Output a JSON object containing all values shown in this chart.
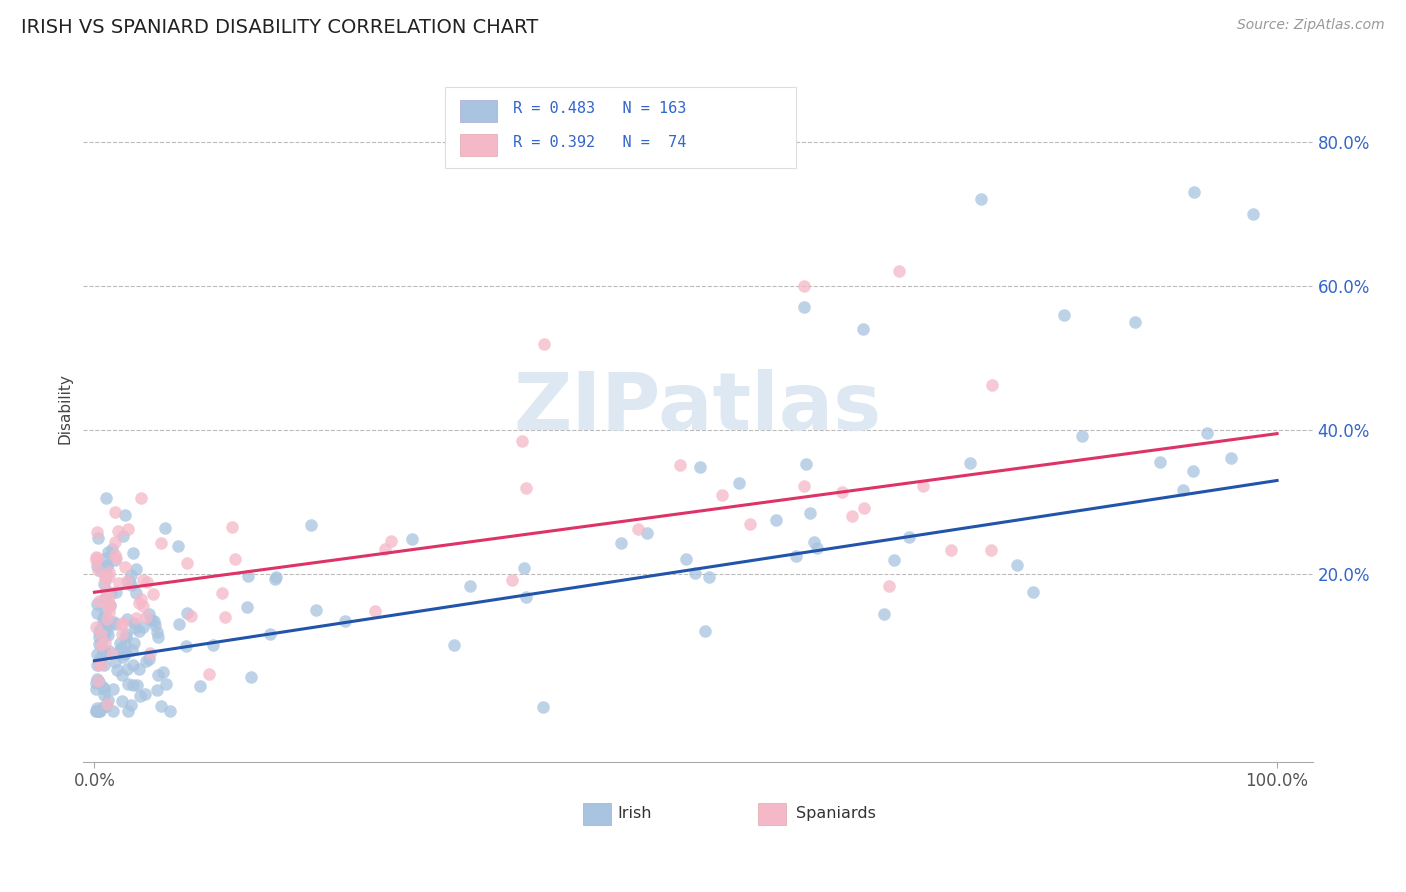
{
  "title": "IRISH VS SPANIARD DISABILITY CORRELATION CHART",
  "source_text": "Source: ZipAtlas.com",
  "ylabel": "Disability",
  "irish_R": 0.483,
  "irish_N": 163,
  "spaniard_R": 0.392,
  "spaniard_N": 74,
  "irish_color": "#a8c4e0",
  "spaniard_color": "#f5b8c8",
  "irish_line_color": "#2255aa",
  "spaniard_line_color": "#dd3366",
  "background_color": "#ffffff",
  "watermark_color": "#dde8f2",
  "y_tick_vals": [
    0.0,
    0.2,
    0.4,
    0.6,
    0.8
  ],
  "y_tick_labels": [
    "",
    "20.0%",
    "40.0%",
    "60.0%",
    "80.0%"
  ],
  "x_tick_vals": [
    0.0,
    1.0
  ],
  "x_tick_labels": [
    "0.0%",
    "100.0%"
  ],
  "ylim": [
    -0.06,
    0.92
  ],
  "xlim": [
    -0.01,
    1.03
  ]
}
